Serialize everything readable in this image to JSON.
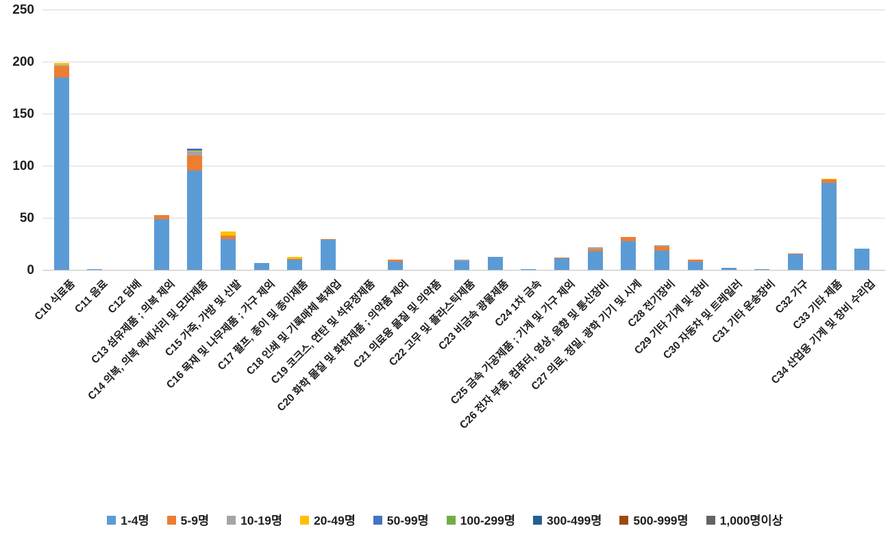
{
  "chart_data": {
    "type": "bar",
    "stacked": true,
    "title": "",
    "xlabel": "",
    "ylabel": "",
    "ylim": [
      0,
      250
    ],
    "yticks": [
      0,
      50,
      100,
      150,
      200,
      250
    ],
    "grid": true,
    "legend_position": "bottom",
    "background_color": "#ffffff",
    "gridline_color": "#d9d9d9",
    "text_color": "#1f1f1f",
    "categories": [
      "C10 식료품",
      "C11 음료",
      "C12 담배",
      "C13 섬유제품 ; 의복 제외",
      "C14 의복, 의복 액세서리 및 모피제품",
      "C15 가죽, 가방 및 신발",
      "C16 목재 및 나무제품 ; 가구 제외",
      "C17 펄프, 종이 및 종이제품",
      "C18 인쇄 및 기록매체 복제업",
      "C19 코크스, 연탄 및 석유정제품",
      "C20 화학 물질 및 화학제품 ; 의약품 제외",
      "C21 의료용 물질 및 의약품",
      "C22 고무 및 플라스틱제품",
      "C23 비금속 광물제품",
      "C24 1차 금속",
      "C25 금속 가공제품 ; 기계 및 가구 제외",
      "C26 전자 부품, 컴퓨터, 영상, 음향 및 통신장비",
      "C27 의료, 정밀, 광학 기기 및 시계",
      "C28 전기장비",
      "C29 기타 기계 및 장비",
      "C30 자동차 및 트레일러",
      "C31 기타 운송장비",
      "C32 가구",
      "C33 기타 제품",
      "C34 산업용 기계 및 장비 수리업"
    ],
    "series": [
      {
        "name": "1-4명",
        "color": "#5B9BD5",
        "values": [
          185,
          1,
          0,
          49,
          96,
          30,
          7,
          10,
          29,
          0,
          8.5,
          0,
          9,
          13,
          1,
          11.5,
          18,
          28,
          19,
          8,
          2,
          1,
          15.5,
          84,
          21
        ]
      },
      {
        "name": "5-9명",
        "color": "#ED7D31",
        "values": [
          11,
          0,
          0,
          4,
          14,
          3,
          0,
          1,
          1,
          0,
          1.5,
          0,
          0,
          0,
          0,
          1,
          2,
          4,
          4,
          2,
          0,
          0,
          0.5,
          3,
          0
        ]
      },
      {
        "name": "10-19명",
        "color": "#A5A5A5",
        "values": [
          1,
          0,
          0,
          0,
          4,
          0,
          0,
          0,
          0,
          0,
          0,
          0,
          1.5,
          0,
          0,
          0,
          2,
          0,
          1,
          0,
          0,
          0,
          0,
          0,
          0
        ]
      },
      {
        "name": "20-49명",
        "color": "#FFC000",
        "values": [
          2,
          0,
          0,
          0,
          1,
          4,
          0,
          2,
          0,
          0,
          0,
          0,
          0,
          0,
          0,
          0,
          0,
          0,
          0,
          0,
          0,
          0,
          0,
          1,
          0
        ]
      },
      {
        "name": "50-99명",
        "color": "#4472C4",
        "values": [
          0,
          0,
          0,
          0,
          2,
          0,
          0,
          0,
          0,
          0,
          0,
          0,
          0,
          0,
          0,
          0,
          0,
          0,
          0,
          0,
          0,
          0,
          0,
          0,
          0
        ]
      },
      {
        "name": "100-299명",
        "color": "#70AD47",
        "values": [
          0,
          0,
          0,
          0,
          0,
          0,
          0,
          0,
          0,
          0,
          0,
          0,
          0,
          0,
          0,
          0,
          0,
          0,
          0,
          0,
          0,
          0,
          0,
          0,
          0
        ]
      },
      {
        "name": "300-499명",
        "color": "#255E91",
        "values": [
          0,
          0,
          0,
          0,
          0,
          0,
          0,
          0,
          0,
          0,
          0,
          0,
          0,
          0,
          0,
          0,
          0,
          0,
          0,
          0,
          0,
          0,
          0,
          0,
          0
        ]
      },
      {
        "name": "500-999명",
        "color": "#9E480E",
        "values": [
          0,
          0,
          0,
          0,
          0,
          0,
          0,
          0,
          0,
          0,
          0,
          0,
          0,
          0,
          0,
          0,
          0,
          0,
          0,
          0,
          0,
          0,
          0,
          0,
          0
        ]
      },
      {
        "name": "1,000명이상",
        "color": "#636363",
        "values": [
          0,
          0,
          0,
          0,
          0,
          0,
          0,
          0,
          0,
          0,
          0,
          0,
          0,
          0,
          0,
          0,
          0,
          0,
          0,
          0,
          0,
          0,
          0,
          0,
          0
        ]
      }
    ]
  }
}
